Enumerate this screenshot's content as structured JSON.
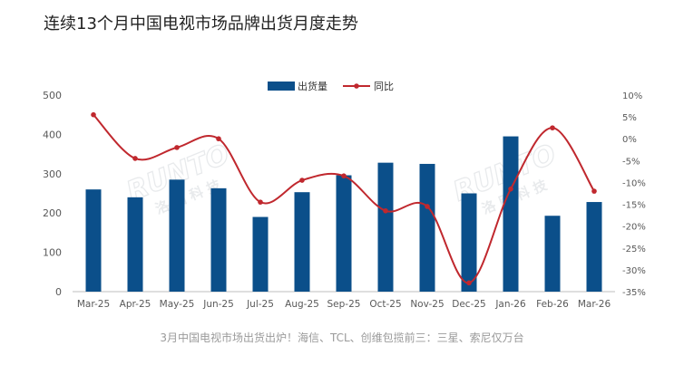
{
  "page": {
    "title": "连续13个月中国电视市场品牌出货月度走势",
    "caption": "3月中国电视市场出货出炉！海信、TCL、创维包揽前三：三星、索尼仅万台"
  },
  "watermark": {
    "text": "Runto 洛图科技",
    "logo_latin": "RUNTO",
    "logo_cjk": "洛 图 科 技"
  },
  "colors": {
    "bar": "#0B4F8A",
    "line": "#C0282E",
    "axis": "#bfbfbf",
    "text": "#595959"
  },
  "chart_data": {
    "type": "bar+line",
    "title": "连续13个月中国电视市场品牌出货月度走势",
    "categories": [
      "Mar-25",
      "Apr-25",
      "May-25",
      "Jun-25",
      "Jul-25",
      "Aug-25",
      "Sep-25",
      "Oct-25",
      "Nov-25",
      "Dec-25",
      "Jan-26",
      "Feb-26",
      "Mar-26"
    ],
    "series": [
      {
        "name": "出货量",
        "type": "bar",
        "axis": "left",
        "values": [
          260,
          240,
          285,
          263,
          190,
          253,
          296,
          328,
          325,
          250,
          395,
          193,
          228
        ]
      },
      {
        "name": "同比",
        "type": "line",
        "axis": "right",
        "unit": "%",
        "values": [
          5.5,
          -4.5,
          -2.0,
          0.0,
          -14.5,
          -9.5,
          -8.5,
          -16.5,
          -15.5,
          -33.0,
          -11.5,
          2.5,
          -12.0
        ]
      }
    ],
    "left_axis": {
      "ylim": [
        0,
        500
      ],
      "ticks": [
        0,
        100,
        200,
        300,
        400,
        500
      ]
    },
    "right_axis": {
      "ylim": [
        -35,
        10
      ],
      "ticks": [
        "10%",
        "5%",
        "0%",
        "-5%",
        "-10%",
        "-15%",
        "-20%",
        "-25%",
        "-30%",
        "-35%"
      ]
    },
    "legend": {
      "position": "top-center",
      "items": [
        "出货量",
        "同比"
      ]
    },
    "grid": false
  }
}
